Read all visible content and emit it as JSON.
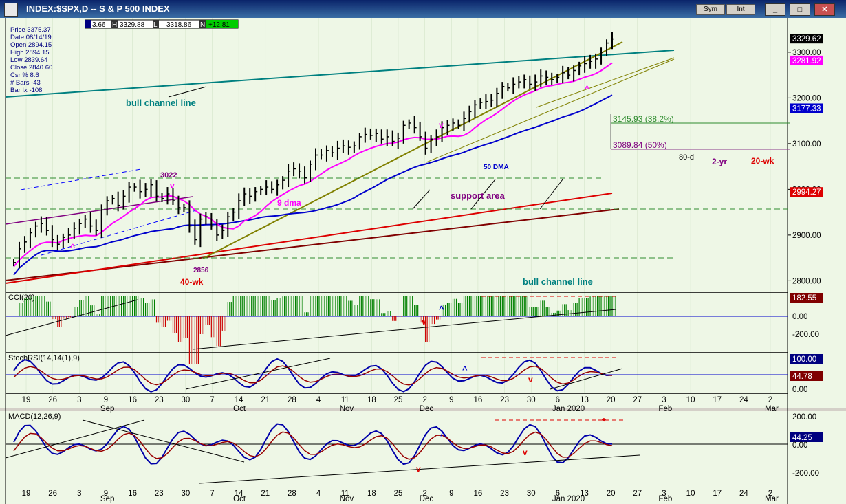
{
  "window": {
    "title": "INDEX:$SPX,D -- S & P 500 INDEX",
    "sym_button": "Sym",
    "int_button": "Int",
    "minimize": "_",
    "maximize": "□",
    "close": "✕"
  },
  "colors": {
    "bg": "#eef7e6",
    "plot_bg": "#eef7e6",
    "price_bar": "#000000",
    "dma9": "#ff00ff",
    "dma50": "#0000cc",
    "wk40": "#dd0000",
    "yr2": "#800000",
    "channel": "#008080",
    "trend": "#808000",
    "support": "#2e8b2e",
    "macd": "#0000aa",
    "signal": "#990000",
    "cci_pos": "#008000",
    "cci_neg": "#cc0000"
  },
  "info_box": {
    "price": "Price  3375.37",
    "date": "Date   08/14/19",
    "open": "Open   2894.15",
    "high": "High   2894.15",
    "low": "Low    2839.64",
    "close": "Close  2840.60",
    "csr": "Csr %  8.6",
    "bars": "# Bars -43",
    "barix": "Bar Ix -108"
  },
  "ohlc_bar": {
    "o": "3.66",
    "h_label": "H",
    "h": "3329.88",
    "l_label": "L",
    "l": "3318.86",
    "n_label": "N",
    "n": "+12.81"
  },
  "annotations": {
    "bull_channel_top": "bull channel line",
    "bull_channel_bottom": "bull channel line",
    "support_area": "support area",
    "dma9": "9 dma",
    "dma50": "50 DMA",
    "wk40": "40-wk",
    "low2856": "2856",
    "high3022": "3022",
    "fib382": "3145.93 (38.2%)",
    "fib50": "3089.84 (50%)",
    "d80": "80-d",
    "yr2": "2-yr",
    "wk20": "20-wk"
  },
  "price_axis": {
    "labels": [
      "3300.00",
      "3200.00",
      "3100.00",
      "3000.00",
      "2900.00",
      "2800.00"
    ],
    "values": [
      3300,
      3200,
      3100,
      3000,
      2900,
      2800
    ],
    "range": [
      2775,
      3375
    ],
    "tags": [
      {
        "text": "3329.62",
        "value": 3329.62,
        "bg": "#000000"
      },
      {
        "text": "3281.92",
        "value": 3281.92,
        "bg": "#ff00ff"
      },
      {
        "text": "3177.33",
        "value": 3177.33,
        "bg": "#0000cc"
      },
      {
        "text": "2994.27",
        "value": 2994.27,
        "bg": "#dd0000"
      }
    ]
  },
  "cci": {
    "title": "CCI(20)",
    "axis": [
      "0.00",
      "-200.00"
    ],
    "tag": "182.55"
  },
  "stoch": {
    "title": "StochRSI(14,14(1),9)",
    "axis": [
      "0.00"
    ],
    "tags": [
      "100.00",
      "44.78"
    ]
  },
  "macd": {
    "title": "MACD(12,26,9)",
    "axis": [
      "200.00",
      "0.00",
      "-200.00"
    ],
    "tag": "44.25"
  },
  "x_axis": {
    "days": [
      "19",
      "26",
      "3",
      "9",
      "16",
      "23",
      "30",
      "7",
      "14",
      "21",
      "28",
      "4",
      "11",
      "18",
      "25",
      "2",
      "9",
      "16",
      "23",
      "30",
      "6",
      "13",
      "20",
      "27",
      "3",
      "10",
      "17",
      "24",
      "2"
    ],
    "months": [
      "Sep",
      "Oct",
      "Nov",
      "Dec",
      "Jan 2020",
      "Feb",
      "Mar"
    ]
  },
  "chart_data": {
    "type": "candlestick",
    "title": "INDEX:$SPX,D -- S & P 500 INDEX",
    "ylim": [
      2775,
      3375
    ],
    "closes": [
      2840,
      2870,
      2885,
      2905,
      2920,
      2925,
      2910,
      2890,
      2880,
      2895,
      2900,
      2915,
      2925,
      2935,
      2920,
      2910,
      2955,
      2975,
      2980,
      2965,
      2985,
      3005,
      3005,
      2995,
      3000,
      3010,
      2985,
      2980,
      2990,
      2975,
      2960,
      2960,
      2920,
      2890,
      2935,
      2940,
      2920,
      2900,
      2910,
      2940,
      2950,
      2975,
      2990,
      2985,
      2995,
      3000,
      3005,
      3000,
      3010,
      3020,
      3040,
      3045,
      3040,
      3025,
      3055,
      3075,
      3075,
      3085,
      3080,
      3090,
      3095,
      3092,
      3095,
      3115,
      3120,
      3118,
      3122,
      3110,
      3115,
      3105,
      3112,
      3140,
      3145,
      3135,
      3115,
      3090,
      3110,
      3115,
      3135,
      3140,
      3145,
      3140,
      3155,
      3170,
      3185,
      3190,
      3192,
      3195,
      3210,
      3225,
      3222,
      3230,
      3235,
      3240,
      3230,
      3235,
      3248,
      3245,
      3240,
      3245,
      3255,
      3250,
      3260,
      3270,
      3275,
      3280,
      3285,
      3300,
      3320,
      3329
    ]
  }
}
